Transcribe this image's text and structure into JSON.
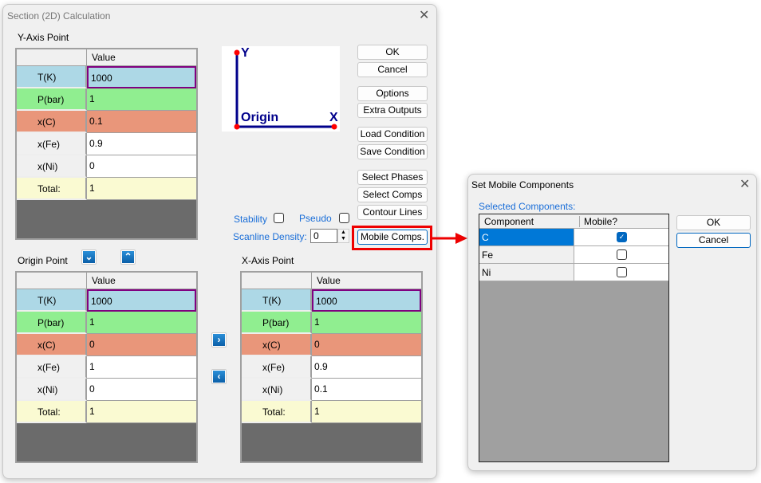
{
  "main": {
    "title": "Section (2D) Calculation",
    "y_axis": {
      "label": "Y-Axis Point",
      "header": "Value",
      "rows": [
        {
          "k": "T(K)",
          "v": "1000"
        },
        {
          "k": "P(bar)",
          "v": "1"
        },
        {
          "k": "x(C)",
          "v": "0.1"
        },
        {
          "k": "x(Fe)",
          "v": "0.9"
        },
        {
          "k": "x(Ni)",
          "v": "0"
        },
        {
          "k": "Total:",
          "v": "1"
        }
      ]
    },
    "origin": {
      "label": "Origin Point",
      "header": "Value",
      "rows": [
        {
          "k": "T(K)",
          "v": "1000"
        },
        {
          "k": "P(bar)",
          "v": "1"
        },
        {
          "k": "x(C)",
          "v": "0"
        },
        {
          "k": "x(Fe)",
          "v": "1"
        },
        {
          "k": "x(Ni)",
          "v": "0"
        },
        {
          "k": "Total:",
          "v": "1"
        }
      ]
    },
    "x_axis": {
      "label": "X-Axis Point",
      "header": "Value",
      "rows": [
        {
          "k": "T(K)",
          "v": "1000"
        },
        {
          "k": "P(bar)",
          "v": "1"
        },
        {
          "k": "x(C)",
          "v": "0"
        },
        {
          "k": "x(Fe)",
          "v": "0.9"
        },
        {
          "k": "x(Ni)",
          "v": "0.1"
        },
        {
          "k": "Total:",
          "v": "1"
        }
      ]
    },
    "diagram": {
      "y": "Y",
      "x": "X",
      "origin": "Origin"
    },
    "buttons": {
      "ok": "OK",
      "cancel": "Cancel",
      "options": "Options",
      "extra": "Extra Outputs",
      "load": "Load Condition",
      "save": "Save Condition",
      "phases": "Select Phases",
      "comps": "Select Comps",
      "contour": "Contour Lines",
      "mobile": "Mobile Comps."
    },
    "stability": "Stability",
    "pseudo": "Pseudo",
    "scanline_label": "Scanline Density:",
    "scanline_value": "0",
    "row_colors": [
      "#add8e6",
      "#90ee90",
      "#e9967a",
      "#ffffff",
      "#ffffff",
      "#fafad2"
    ]
  },
  "mobile": {
    "title": "Set Mobile Components",
    "label": "Selected Components:",
    "col1": "Component",
    "col2": "Mobile?",
    "rows": [
      {
        "c": "C",
        "mobile": true
      },
      {
        "c": "Fe",
        "mobile": false
      },
      {
        "c": "Ni",
        "mobile": false
      }
    ],
    "ok": "OK",
    "cancel": "Cancel"
  },
  "colors": {
    "highlight": "#ff0000",
    "select": "#0078d7"
  }
}
